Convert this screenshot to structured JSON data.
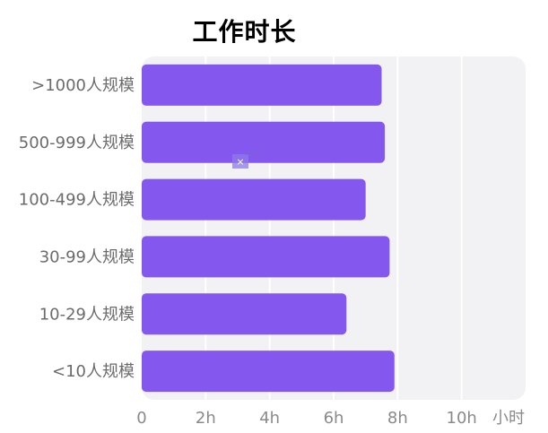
{
  "chart_data": {
    "type": "bar",
    "orientation": "horizontal",
    "title": "工作时长",
    "x_unit_label": "小时",
    "categories": [
      ">1000人规模",
      "500-999人规模",
      "100-499人规模",
      "30-99人规模",
      "10-29人规模",
      "<10人规模"
    ],
    "values": [
      7.5,
      7.6,
      7.0,
      7.75,
      6.4,
      7.9
    ],
    "xlim": [
      0,
      12
    ],
    "x_ticks": [
      0,
      2,
      4,
      6,
      8,
      10
    ],
    "x_tick_labels": [
      "0",
      "2h",
      "4h",
      "6h",
      "8h",
      "10h"
    ],
    "grid": true,
    "legend": "none",
    "bar_color": "#8458ef",
    "plot_background": "#f2f1f3"
  },
  "overlay": {
    "close_glyph": "×"
  }
}
